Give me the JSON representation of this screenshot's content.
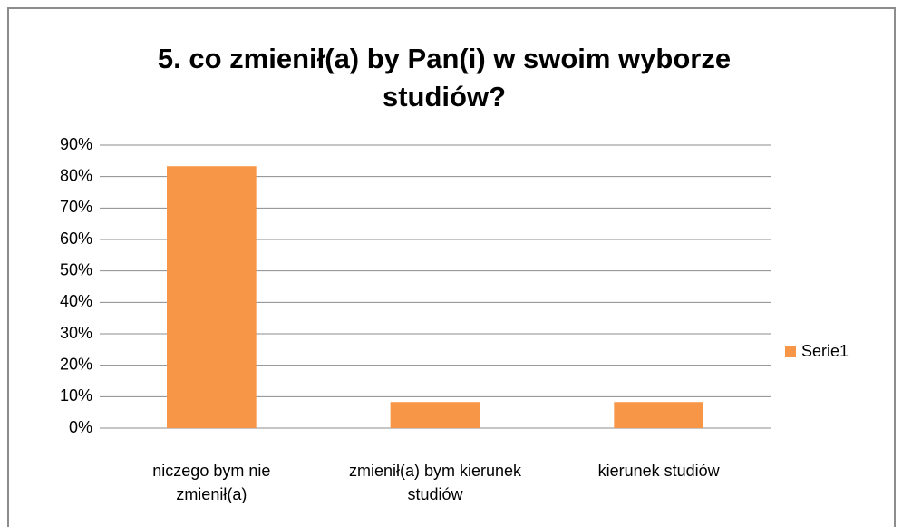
{
  "chart_data": {
    "type": "bar",
    "title": "5. co zmienił(a) by Pan(i) w swoim wyborze studiów?",
    "categories": [
      "niczego bym nie zmienił(a)",
      "zmienił(a) bym kierunek studiów",
      "kierunek studiów"
    ],
    "series": [
      {
        "name": "Serie1",
        "color": "#f79646",
        "values": [
          83.3,
          8.3,
          8.3
        ]
      }
    ],
    "ylim": [
      0,
      90
    ],
    "yticks": [
      {
        "value": 0,
        "label": "0%"
      },
      {
        "value": 10,
        "label": "10%"
      },
      {
        "value": 20,
        "label": "20%"
      },
      {
        "value": 30,
        "label": "30%"
      },
      {
        "value": 40,
        "label": "40%"
      },
      {
        "value": 50,
        "label": "50%"
      },
      {
        "value": 60,
        "label": "60%"
      },
      {
        "value": 70,
        "label": "70%"
      },
      {
        "value": 80,
        "label": "80%"
      },
      {
        "value": 90,
        "label": "90%"
      }
    ],
    "grid": true,
    "legend": "right"
  }
}
